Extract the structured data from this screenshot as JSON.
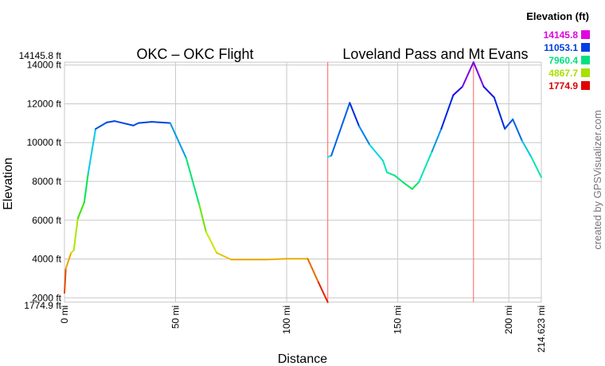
{
  "chart_data": {
    "type": "line",
    "xlabel": "Distance",
    "ylabel": "Elevation",
    "xlim": [
      0,
      214.623
    ],
    "ylim": [
      1774.9,
      14145.8
    ],
    "grid": true,
    "x_ticks": [
      {
        "v": 0,
        "label": "0 mi"
      },
      {
        "v": 50,
        "label": "50 mi"
      },
      {
        "v": 100,
        "label": "100 mi"
      },
      {
        "v": 150,
        "label": "150 mi"
      },
      {
        "v": 200,
        "label": "200 mi"
      },
      {
        "v": 214.623,
        "label": "214.623 mi"
      }
    ],
    "y_ticks": [
      {
        "v": 2000,
        "label": "2000 ft"
      },
      {
        "v": 4000,
        "label": "4000 ft"
      },
      {
        "v": 6000,
        "label": "6000 ft"
      },
      {
        "v": 8000,
        "label": "8000 ft"
      },
      {
        "v": 10000,
        "label": "10000 ft"
      },
      {
        "v": 12000,
        "label": "12000 ft"
      },
      {
        "v": 14000,
        "label": "14000 ft"
      }
    ],
    "y_extremes": [
      {
        "v": 14145.8,
        "label": "14145.8 ft"
      },
      {
        "v": 1774.9,
        "label": "1774.9 ft"
      }
    ],
    "markers_mi": [
      118.5,
      184.1
    ],
    "series": [
      {
        "name": "OKC – OKC Flight",
        "x": [
          0,
          0.6,
          3.0,
          4.2,
          6.0,
          8.9,
          10.7,
          14.0,
          19.0,
          22.6,
          31.0,
          33.3,
          39.3,
          47.6,
          54.8,
          60.7,
          63.7,
          68.5,
          75.0,
          90.5,
          100,
          109.5,
          114.3,
          118.5
        ],
        "y": [
          2250,
          3500,
          4320,
          4450,
          6090,
          6920,
          8440,
          10700,
          11040,
          11110,
          10880,
          11010,
          11070,
          11010,
          9200,
          6780,
          5410,
          4320,
          3970,
          3970,
          4010,
          4010,
          2800,
          1775
        ]
      },
      {
        "name": "Loveland Pass and Mt Evans",
        "x": [
          118.5,
          120.1,
          128.4,
          132.6,
          137.4,
          143.4,
          145.1,
          148.7,
          152.3,
          156.5,
          159.5,
          165.4,
          169.6,
          175.0,
          179.1,
          184.1,
          188.7,
          193.4,
          198.2,
          201.8,
          206.0,
          210.1,
          214.623
        ],
        "y": [
          9260,
          9330,
          12050,
          10850,
          9880,
          9060,
          8470,
          8300,
          7960,
          7610,
          7960,
          9540,
          10710,
          12450,
          12880,
          14146,
          12880,
          12330,
          10710,
          11200,
          10080,
          9260,
          8220
        ]
      }
    ],
    "legend": {
      "title": "Elevation (ft)",
      "placement": "top-right",
      "entries": [
        {
          "label": "14145.8",
          "color": "#e000e0"
        },
        {
          "label": "11053.1",
          "color": "#0040e0"
        },
        {
          "label": "7960.4",
          "color": "#00e080"
        },
        {
          "label": "4867.7",
          "color": "#a8e000"
        },
        {
          "label": "1774.9",
          "color": "#e00000"
        }
      ]
    }
  },
  "credit": "created by GPSVisualizer.com",
  "colors": {
    "grid": "#c8c8c8",
    "marker": "#ff6060",
    "credit": "#777777"
  }
}
